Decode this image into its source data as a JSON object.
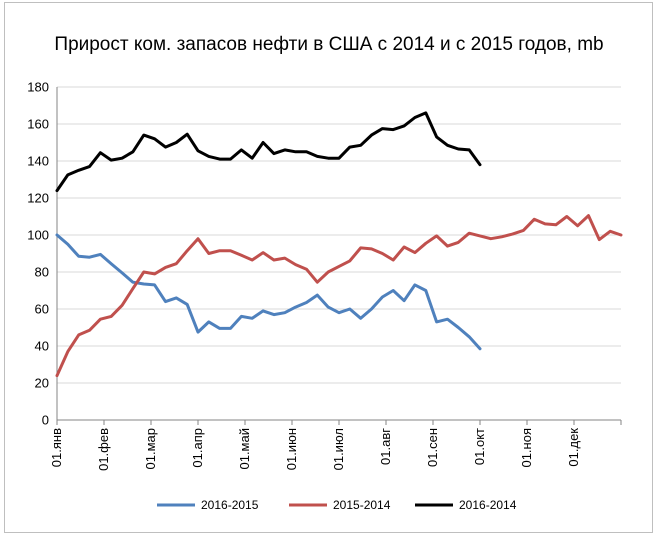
{
  "chart_data": {
    "type": "line",
    "title": "Прирост ком. запасов нефти в США с 2014 и с 2015 годов, mb",
    "xlabel": "",
    "ylabel": "",
    "ylim": [
      0,
      180
    ],
    "yticks": [
      0,
      20,
      40,
      60,
      80,
      100,
      120,
      140,
      160,
      180
    ],
    "x_tick_labels": [
      "01.янв",
      "01.фев",
      "01.мар",
      "01.апр",
      "01.май",
      "01.июн",
      "01.июл",
      "01.авг",
      "01.сен",
      "01.окт",
      "01.ноя",
      "01.дек"
    ],
    "x_points": 53,
    "grid": "horizontal",
    "legend_position": "bottom",
    "series": [
      {
        "name": "2016-2015",
        "color": "#4f81bd",
        "values": [
          100,
          95,
          88.5,
          88,
          89.5,
          84.5,
          79.5,
          74.5,
          73.5,
          73,
          64,
          66,
          62.5,
          47.5,
          53,
          49.5,
          49.5,
          56,
          55,
          59,
          57,
          58,
          61,
          63.5,
          67.5,
          61,
          58,
          60,
          55,
          60,
          66.5,
          70,
          64.5,
          73,
          70,
          53,
          54.5,
          50,
          45,
          38.5
        ]
      },
      {
        "name": "2015-2014",
        "color": "#c0504d",
        "values": [
          24,
          37,
          46,
          48.5,
          54.5,
          56,
          62,
          71,
          80,
          79,
          82.5,
          84.5,
          91.5,
          98,
          90,
          91.5,
          91.5,
          89,
          86.5,
          90.5,
          86.5,
          87.5,
          84,
          81.5,
          74.5,
          80,
          83,
          86,
          93,
          92.5,
          90,
          86.5,
          93.5,
          90.5,
          95.5,
          99.5,
          94,
          96,
          101,
          99.5,
          98,
          99,
          100.5,
          102.5,
          108.5,
          106,
          105.5,
          110,
          105,
          110.5,
          97.5,
          102,
          100
        ]
      },
      {
        "name": "2016-2014",
        "color": "#000000",
        "values": [
          124,
          132.5,
          135,
          137,
          144.5,
          140.5,
          141.5,
          145,
          154,
          152,
          147.5,
          150,
          154.5,
          145.5,
          142.5,
          141,
          141,
          146,
          141.5,
          150,
          144,
          146,
          145,
          145,
          142.5,
          141.5,
          141.5,
          147.5,
          148.5,
          154,
          157.5,
          157,
          159,
          163.5,
          166,
          153,
          148.5,
          146.5,
          146,
          138
        ]
      }
    ]
  }
}
